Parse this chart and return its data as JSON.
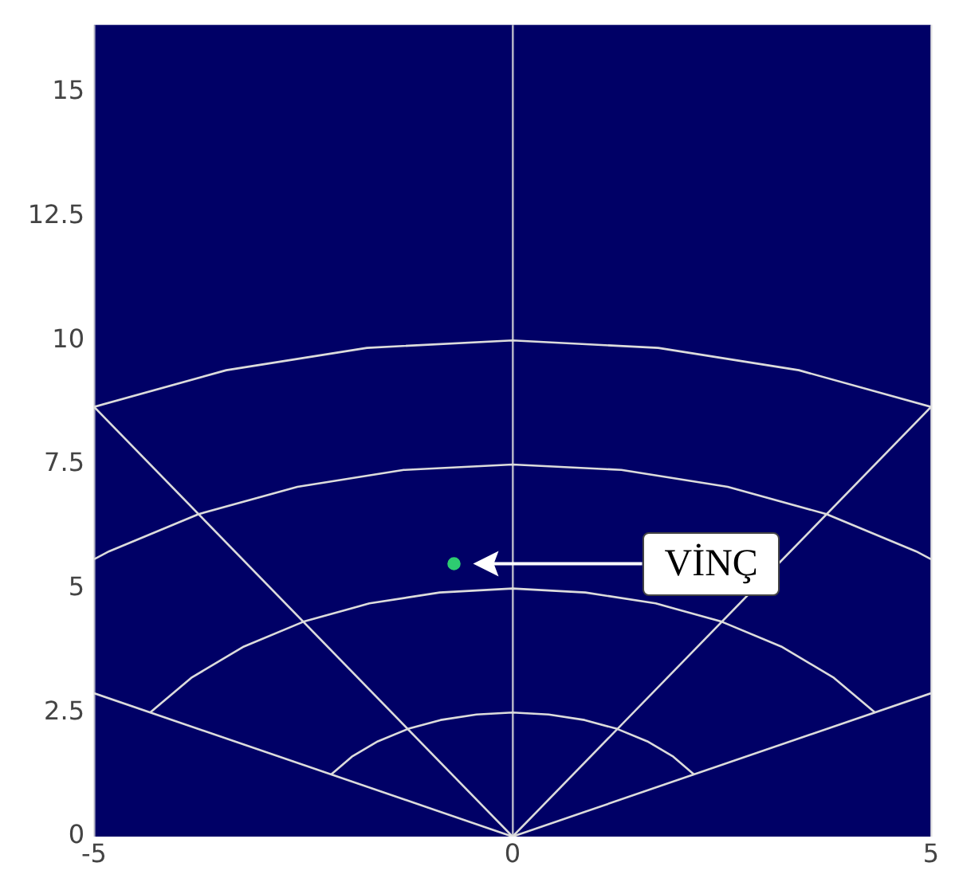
{
  "chart_data": {
    "type": "scatter",
    "series": [
      {
        "color": "#2ecc71",
        "x": [
          -0.7
        ],
        "values": [
          5.5
        ]
      },
      {
        "type": "line",
        "marker": "none",
        "color": "#dcdcdc",
        "x": [
          -2.17,
          -1.92,
          -1.61,
          -1.25,
          -0.86,
          -0.43,
          0,
          0.43,
          0.86,
          1.25,
          1.61,
          1.92,
          2.17
        ],
        "values": [
          1.25,
          1.61,
          1.92,
          2.17,
          2.35,
          2.46,
          2.5,
          2.46,
          2.35,
          2.17,
          1.92,
          1.61,
          1.25
        ]
      },
      {
        "type": "line",
        "marker": "none",
        "color": "#dcdcdc",
        "x": [
          -4.33,
          -3.83,
          -3.21,
          -2.5,
          -1.71,
          -0.87,
          0,
          0.87,
          1.71,
          2.5,
          3.21,
          3.83,
          4.33
        ],
        "values": [
          2.5,
          3.21,
          3.83,
          4.33,
          4.7,
          4.92,
          5,
          4.92,
          4.7,
          4.33,
          3.83,
          3.21,
          2.5
        ]
      },
      {
        "type": "line",
        "marker": "none",
        "color": "#dcdcdc",
        "x": [
          -5,
          -4.82,
          -3.75,
          -2.57,
          -1.3,
          0,
          1.3,
          2.57,
          3.75,
          4.82,
          5
        ],
        "values": [
          5.59,
          5.75,
          6.5,
          7.05,
          7.39,
          7.5,
          7.39,
          7.05,
          6.5,
          5.75,
          5.59
        ]
      },
      {
        "type": "line",
        "marker": "none",
        "color": "#dcdcdc",
        "x": [
          -5,
          -3.42,
          -1.74,
          0,
          1.74,
          3.42,
          5
        ],
        "values": [
          8.66,
          9.4,
          9.85,
          10,
          9.85,
          9.4,
          8.66
        ]
      },
      {
        "type": "line",
        "marker": "none",
        "color": "#dcdcdc",
        "x": [
          0,
          5
        ],
        "values": [
          0,
          2.89
        ]
      },
      {
        "type": "line",
        "marker": "none",
        "color": "#dcdcdc",
        "x": [
          0,
          5
        ],
        "values": [
          0,
          8.66
        ]
      },
      {
        "type": "line",
        "marker": "none",
        "color": "#dcdcdc",
        "x": [
          0,
          -5
        ],
        "values": [
          0,
          8.66
        ]
      },
      {
        "type": "line",
        "marker": "none",
        "color": "#dcdcdc",
        "x": [
          0,
          -5
        ],
        "values": [
          0,
          2.89
        ]
      }
    ],
    "xlim": [
      -5,
      5
    ],
    "xticks": [
      -5,
      0,
      5
    ],
    "ylim": [
      0,
      16.36
    ],
    "yticks": [
      0,
      2.5,
      5,
      7.5,
      10,
      12.5,
      15
    ],
    "grid": "x",
    "legend": false,
    "marker": "circle",
    "annotations": [
      "VİNÇ"
    ]
  }
}
